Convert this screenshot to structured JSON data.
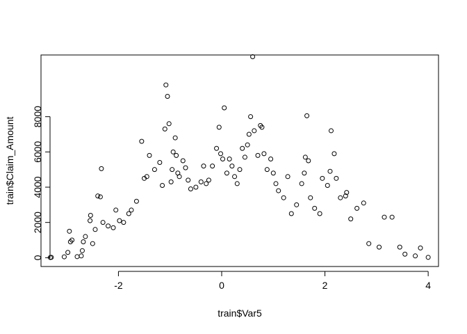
{
  "chart_data": {
    "type": "scatter",
    "title": "",
    "xlabel": "train$Var5",
    "ylabel": "train$Claim_Amount",
    "xlim": [
      -3.5,
      4.2
    ],
    "ylim": [
      -500,
      11500
    ],
    "x_ticks": [
      -2,
      0,
      2,
      4
    ],
    "x_tick_labels": [
      "-2",
      "0",
      "2",
      "4"
    ],
    "y_ticks": [
      0,
      2000,
      4000,
      6000,
      8000
    ],
    "y_tick_labels": [
      "0",
      "2000",
      "4000",
      "6000",
      "8000"
    ],
    "grid": false,
    "legend": "none",
    "marker": "open-circle",
    "color": "#000000",
    "points": [
      [
        -3.32,
        10
      ],
      [
        -3.3,
        20
      ],
      [
        -3.05,
        50
      ],
      [
        -2.98,
        300
      ],
      [
        -2.95,
        1500
      ],
      [
        -2.93,
        900
      ],
      [
        -2.9,
        1000
      ],
      [
        -2.8,
        60
      ],
      [
        -2.72,
        100
      ],
      [
        -2.7,
        400
      ],
      [
        -2.68,
        900
      ],
      [
        -2.64,
        1200
      ],
      [
        -2.55,
        2100
      ],
      [
        -2.54,
        2400
      ],
      [
        -2.5,
        800
      ],
      [
        -2.45,
        1600
      ],
      [
        -2.4,
        3500
      ],
      [
        -2.35,
        3450
      ],
      [
        -2.33,
        5050
      ],
      [
        -2.3,
        2000
      ],
      [
        -2.2,
        1800
      ],
      [
        -2.1,
        1700
      ],
      [
        -2.05,
        2700
      ],
      [
        -1.98,
        2100
      ],
      [
        -1.9,
        2000
      ],
      [
        -1.8,
        2500
      ],
      [
        -1.75,
        2700
      ],
      [
        -1.65,
        3200
      ],
      [
        -1.55,
        6600
      ],
      [
        -1.5,
        4500
      ],
      [
        -1.45,
        4600
      ],
      [
        -1.4,
        5800
      ],
      [
        -1.3,
        5000
      ],
      [
        -1.2,
        5400
      ],
      [
        -1.15,
        4100
      ],
      [
        -1.1,
        7300
      ],
      [
        -1.08,
        9800
      ],
      [
        -1.05,
        9150
      ],
      [
        -1.02,
        7600
      ],
      [
        -0.98,
        4300
      ],
      [
        -0.96,
        5000
      ],
      [
        -0.94,
        6000
      ],
      [
        -0.9,
        6800
      ],
      [
        -0.88,
        5800
      ],
      [
        -0.85,
        4800
      ],
      [
        -0.82,
        4600
      ],
      [
        -0.75,
        5500
      ],
      [
        -0.7,
        5100
      ],
      [
        -0.65,
        4400
      ],
      [
        -0.6,
        3900
      ],
      [
        -0.5,
        4000
      ],
      [
        -0.4,
        4300
      ],
      [
        -0.35,
        5200
      ],
      [
        -0.3,
        4200
      ],
      [
        -0.25,
        4400
      ],
      [
        -0.18,
        5200
      ],
      [
        -0.1,
        6200
      ],
      [
        -0.05,
        7400
      ],
      [
        -0.02,
        5900
      ],
      [
        0.02,
        5600
      ],
      [
        0.05,
        8500
      ],
      [
        0.1,
        4800
      ],
      [
        0.15,
        5600
      ],
      [
        0.2,
        5200
      ],
      [
        0.25,
        4600
      ],
      [
        0.3,
        4200
      ],
      [
        0.35,
        5000
      ],
      [
        0.4,
        6200
      ],
      [
        0.45,
        5700
      ],
      [
        0.5,
        6400
      ],
      [
        0.53,
        7000
      ],
      [
        0.56,
        8000
      ],
      [
        0.6,
        11400
      ],
      [
        0.63,
        7200
      ],
      [
        0.7,
        5800
      ],
      [
        0.75,
        7500
      ],
      [
        0.78,
        7400
      ],
      [
        0.82,
        5900
      ],
      [
        0.88,
        5000
      ],
      [
        0.95,
        5600
      ],
      [
        1.0,
        4800
      ],
      [
        1.05,
        4200
      ],
      [
        1.1,
        3800
      ],
      [
        1.2,
        3400
      ],
      [
        1.28,
        4600
      ],
      [
        1.35,
        2500
      ],
      [
        1.45,
        3000
      ],
      [
        1.55,
        4200
      ],
      [
        1.6,
        4800
      ],
      [
        1.62,
        5700
      ],
      [
        1.65,
        8050
      ],
      [
        1.68,
        5500
      ],
      [
        1.72,
        3400
      ],
      [
        1.8,
        2800
      ],
      [
        1.9,
        2500
      ],
      [
        1.95,
        4500
      ],
      [
        2.05,
        4100
      ],
      [
        2.1,
        4900
      ],
      [
        2.12,
        7200
      ],
      [
        2.18,
        5900
      ],
      [
        2.22,
        4500
      ],
      [
        2.3,
        3400
      ],
      [
        2.4,
        3500
      ],
      [
        2.42,
        3700
      ],
      [
        2.5,
        2200
      ],
      [
        2.62,
        2800
      ],
      [
        2.75,
        3100
      ],
      [
        2.85,
        800
      ],
      [
        3.05,
        600
      ],
      [
        3.15,
        2300
      ],
      [
        3.3,
        2300
      ],
      [
        3.45,
        600
      ],
      [
        3.55,
        200
      ],
      [
        3.75,
        100
      ],
      [
        3.85,
        550
      ],
      [
        4.0,
        20
      ]
    ]
  }
}
